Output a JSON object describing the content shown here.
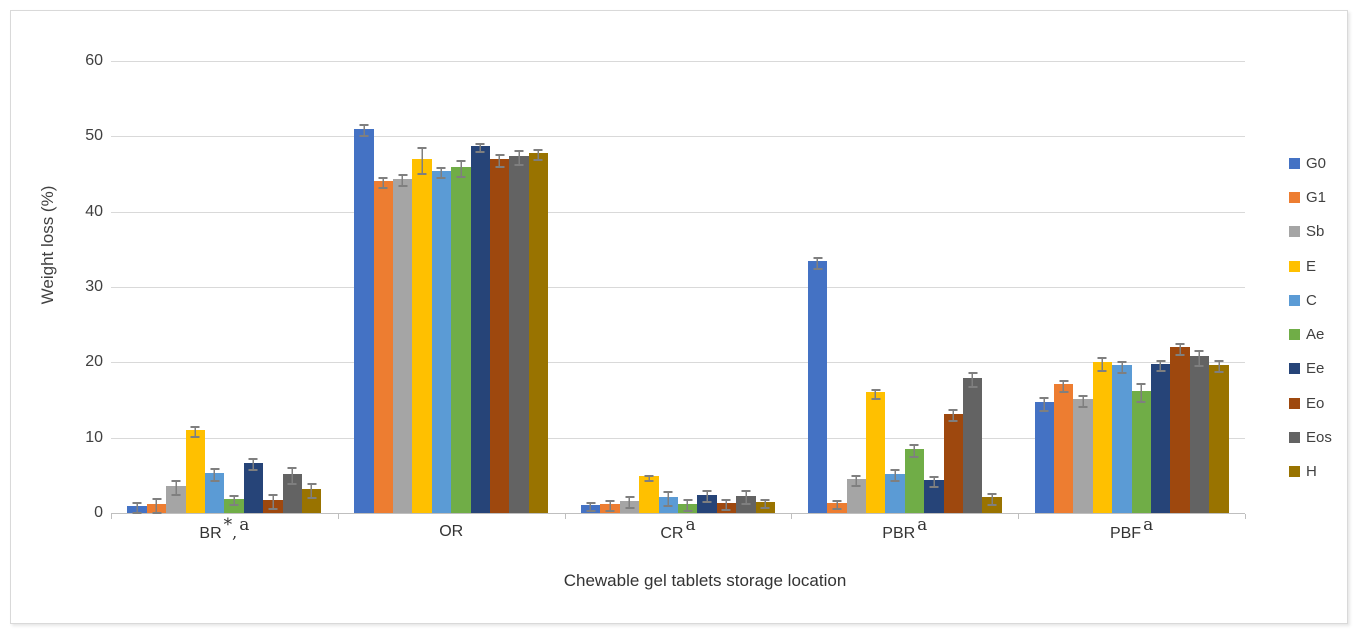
{
  "chart_data": {
    "type": "bar",
    "title": "",
    "xlabel": "Chewable gel tablets storage location",
    "ylabel": "Weight loss (%)",
    "ylim": [
      0,
      60
    ],
    "yticks": [
      0,
      10,
      20,
      30,
      40,
      50,
      60
    ],
    "grid": true,
    "legend_position": "right",
    "error_bars": true,
    "categories": [
      "BR",
      "OR",
      "CR",
      "PBR",
      "PBF"
    ],
    "category_annotations": [
      [
        {
          "text": "*",
          "sup": true
        },
        {
          "text": ",",
          "sup": false
        },
        {
          "text": "a",
          "sup": true
        }
      ],
      [],
      [
        {
          "text": "a",
          "sup": true
        }
      ],
      [
        {
          "text": "a",
          "sup": true
        }
      ],
      [
        {
          "text": "a",
          "sup": true
        }
      ]
    ],
    "series": [
      {
        "name": "G0",
        "color": "#4472C4",
        "values": [
          0.9,
          51.0,
          1.0,
          33.4,
          14.7
        ],
        "errors": [
          0.5,
          0.6,
          0.4,
          0.6,
          0.7
        ]
      },
      {
        "name": "G1",
        "color": "#ED7D31",
        "values": [
          1.2,
          44.1,
          1.2,
          1.3,
          17.1
        ],
        "errors": [
          0.8,
          0.5,
          0.5,
          0.4,
          0.6
        ]
      },
      {
        "name": "Sb",
        "color": "#A5A5A5",
        "values": [
          3.6,
          44.4,
          1.6,
          4.5,
          15.1
        ],
        "errors": [
          0.8,
          0.6,
          0.6,
          0.5,
          0.6
        ]
      },
      {
        "name": "E",
        "color": "#FFC000",
        "values": [
          11.0,
          47.0,
          4.9,
          16.0,
          20.0
        ],
        "errors": [
          0.5,
          1.6,
          0.2,
          0.5,
          0.7
        ]
      },
      {
        "name": "C",
        "color": "#5B9BD5",
        "values": [
          5.3,
          45.4,
          2.1,
          5.2,
          19.6
        ],
        "errors": [
          0.7,
          0.5,
          0.8,
          0.6,
          0.6
        ]
      },
      {
        "name": "Ae",
        "color": "#70AD47",
        "values": [
          1.9,
          45.9,
          1.2,
          8.5,
          16.2
        ],
        "errors": [
          0.5,
          0.9,
          0.6,
          0.7,
          1.0
        ]
      },
      {
        "name": "Ee",
        "color": "#264478",
        "values": [
          6.7,
          48.7,
          2.4,
          4.4,
          19.8
        ],
        "errors": [
          0.6,
          0.4,
          0.6,
          0.5,
          0.5
        ]
      },
      {
        "name": "Eo",
        "color": "#9E480E",
        "values": [
          1.7,
          47.0,
          1.3,
          13.2,
          22.0
        ],
        "errors": [
          0.8,
          0.7,
          0.5,
          0.6,
          0.6
        ]
      },
      {
        "name": "Eos",
        "color": "#636363",
        "values": [
          5.2,
          47.4,
          2.3,
          17.9,
          20.8
        ],
        "errors": [
          0.9,
          0.8,
          0.7,
          0.8,
          0.9
        ]
      },
      {
        "name": "H",
        "color": "#997300",
        "values": [
          3.2,
          47.8,
          1.5,
          2.1,
          19.7
        ],
        "errors": [
          0.8,
          0.5,
          0.4,
          0.6,
          0.6
        ]
      }
    ],
    "colors": {
      "gridline": "#D9D9D9",
      "axis_line": "#BFBFBF",
      "error_bar": "#7F7F7F",
      "text": "#404040"
    }
  }
}
